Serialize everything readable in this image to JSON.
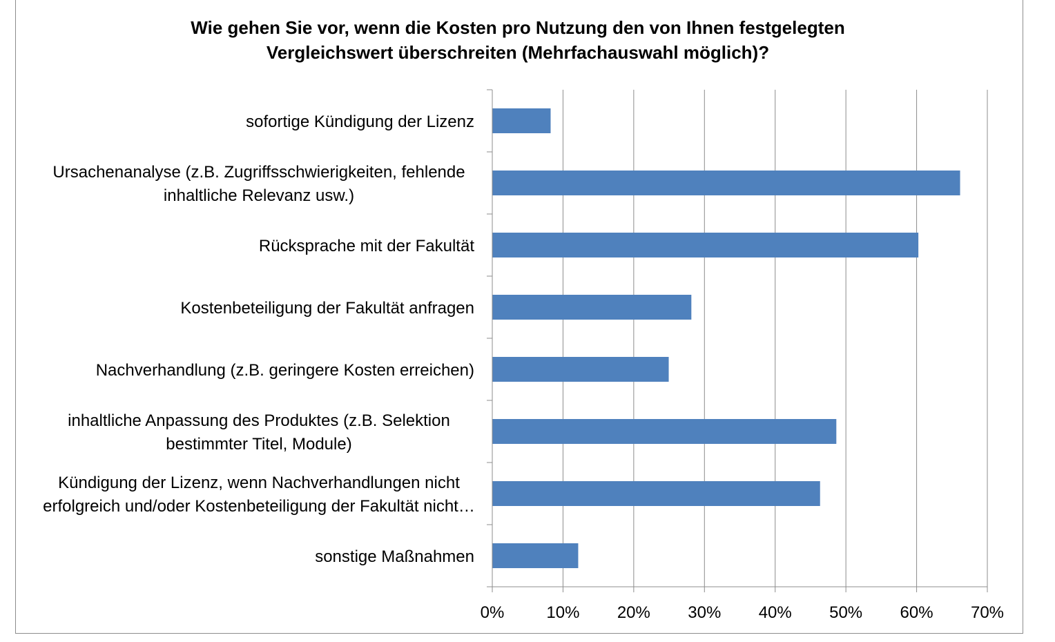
{
  "chart_data": {
    "type": "bar",
    "orientation": "horizontal",
    "title_lines": [
      "Wie gehen Sie vor, wenn die Kosten pro Nutzung den von Ihnen festgelegten",
      "Vergleichswert  überschreiten (Mehrfachauswahl möglich)?"
    ],
    "categories": [
      [
        "sofortige Kündigung der Lizenz"
      ],
      [
        "Ursachenanalyse (z.B. Zugriffsschwierigkeiten, fehlende",
        "inhaltliche Relevanz usw.)"
      ],
      [
        "Rücksprache mit der Fakultät"
      ],
      [
        "Kostenbeteiligung der Fakultät anfragen"
      ],
      [
        "Nachverhandlung (z.B. geringere Kosten erreichen)"
      ],
      [
        "inhaltliche Anpassung des Produktes (z.B. Selektion",
        "bestimmter Titel, Module)"
      ],
      [
        "Kündigung der Lizenz, wenn Nachverhandlungen nicht",
        "erfolgreich und/oder Kostenbeteiligung der Fakultät nicht…"
      ],
      [
        "sonstige Maßnahmen"
      ]
    ],
    "values": [
      8.2,
      66.1,
      60.2,
      28.1,
      24.9,
      48.6,
      46.3,
      12.1
    ],
    "xlim": [
      0,
      70
    ],
    "xticks": [
      "0%",
      "10%",
      "20%",
      "30%",
      "40%",
      "50%",
      "60%",
      "70%"
    ],
    "xtick_values": [
      0,
      10,
      20,
      30,
      40,
      50,
      60,
      70
    ],
    "grid": true,
    "legend": "none",
    "bar_color": "#4f81bd",
    "grid_color": "#8c8c8c"
  }
}
